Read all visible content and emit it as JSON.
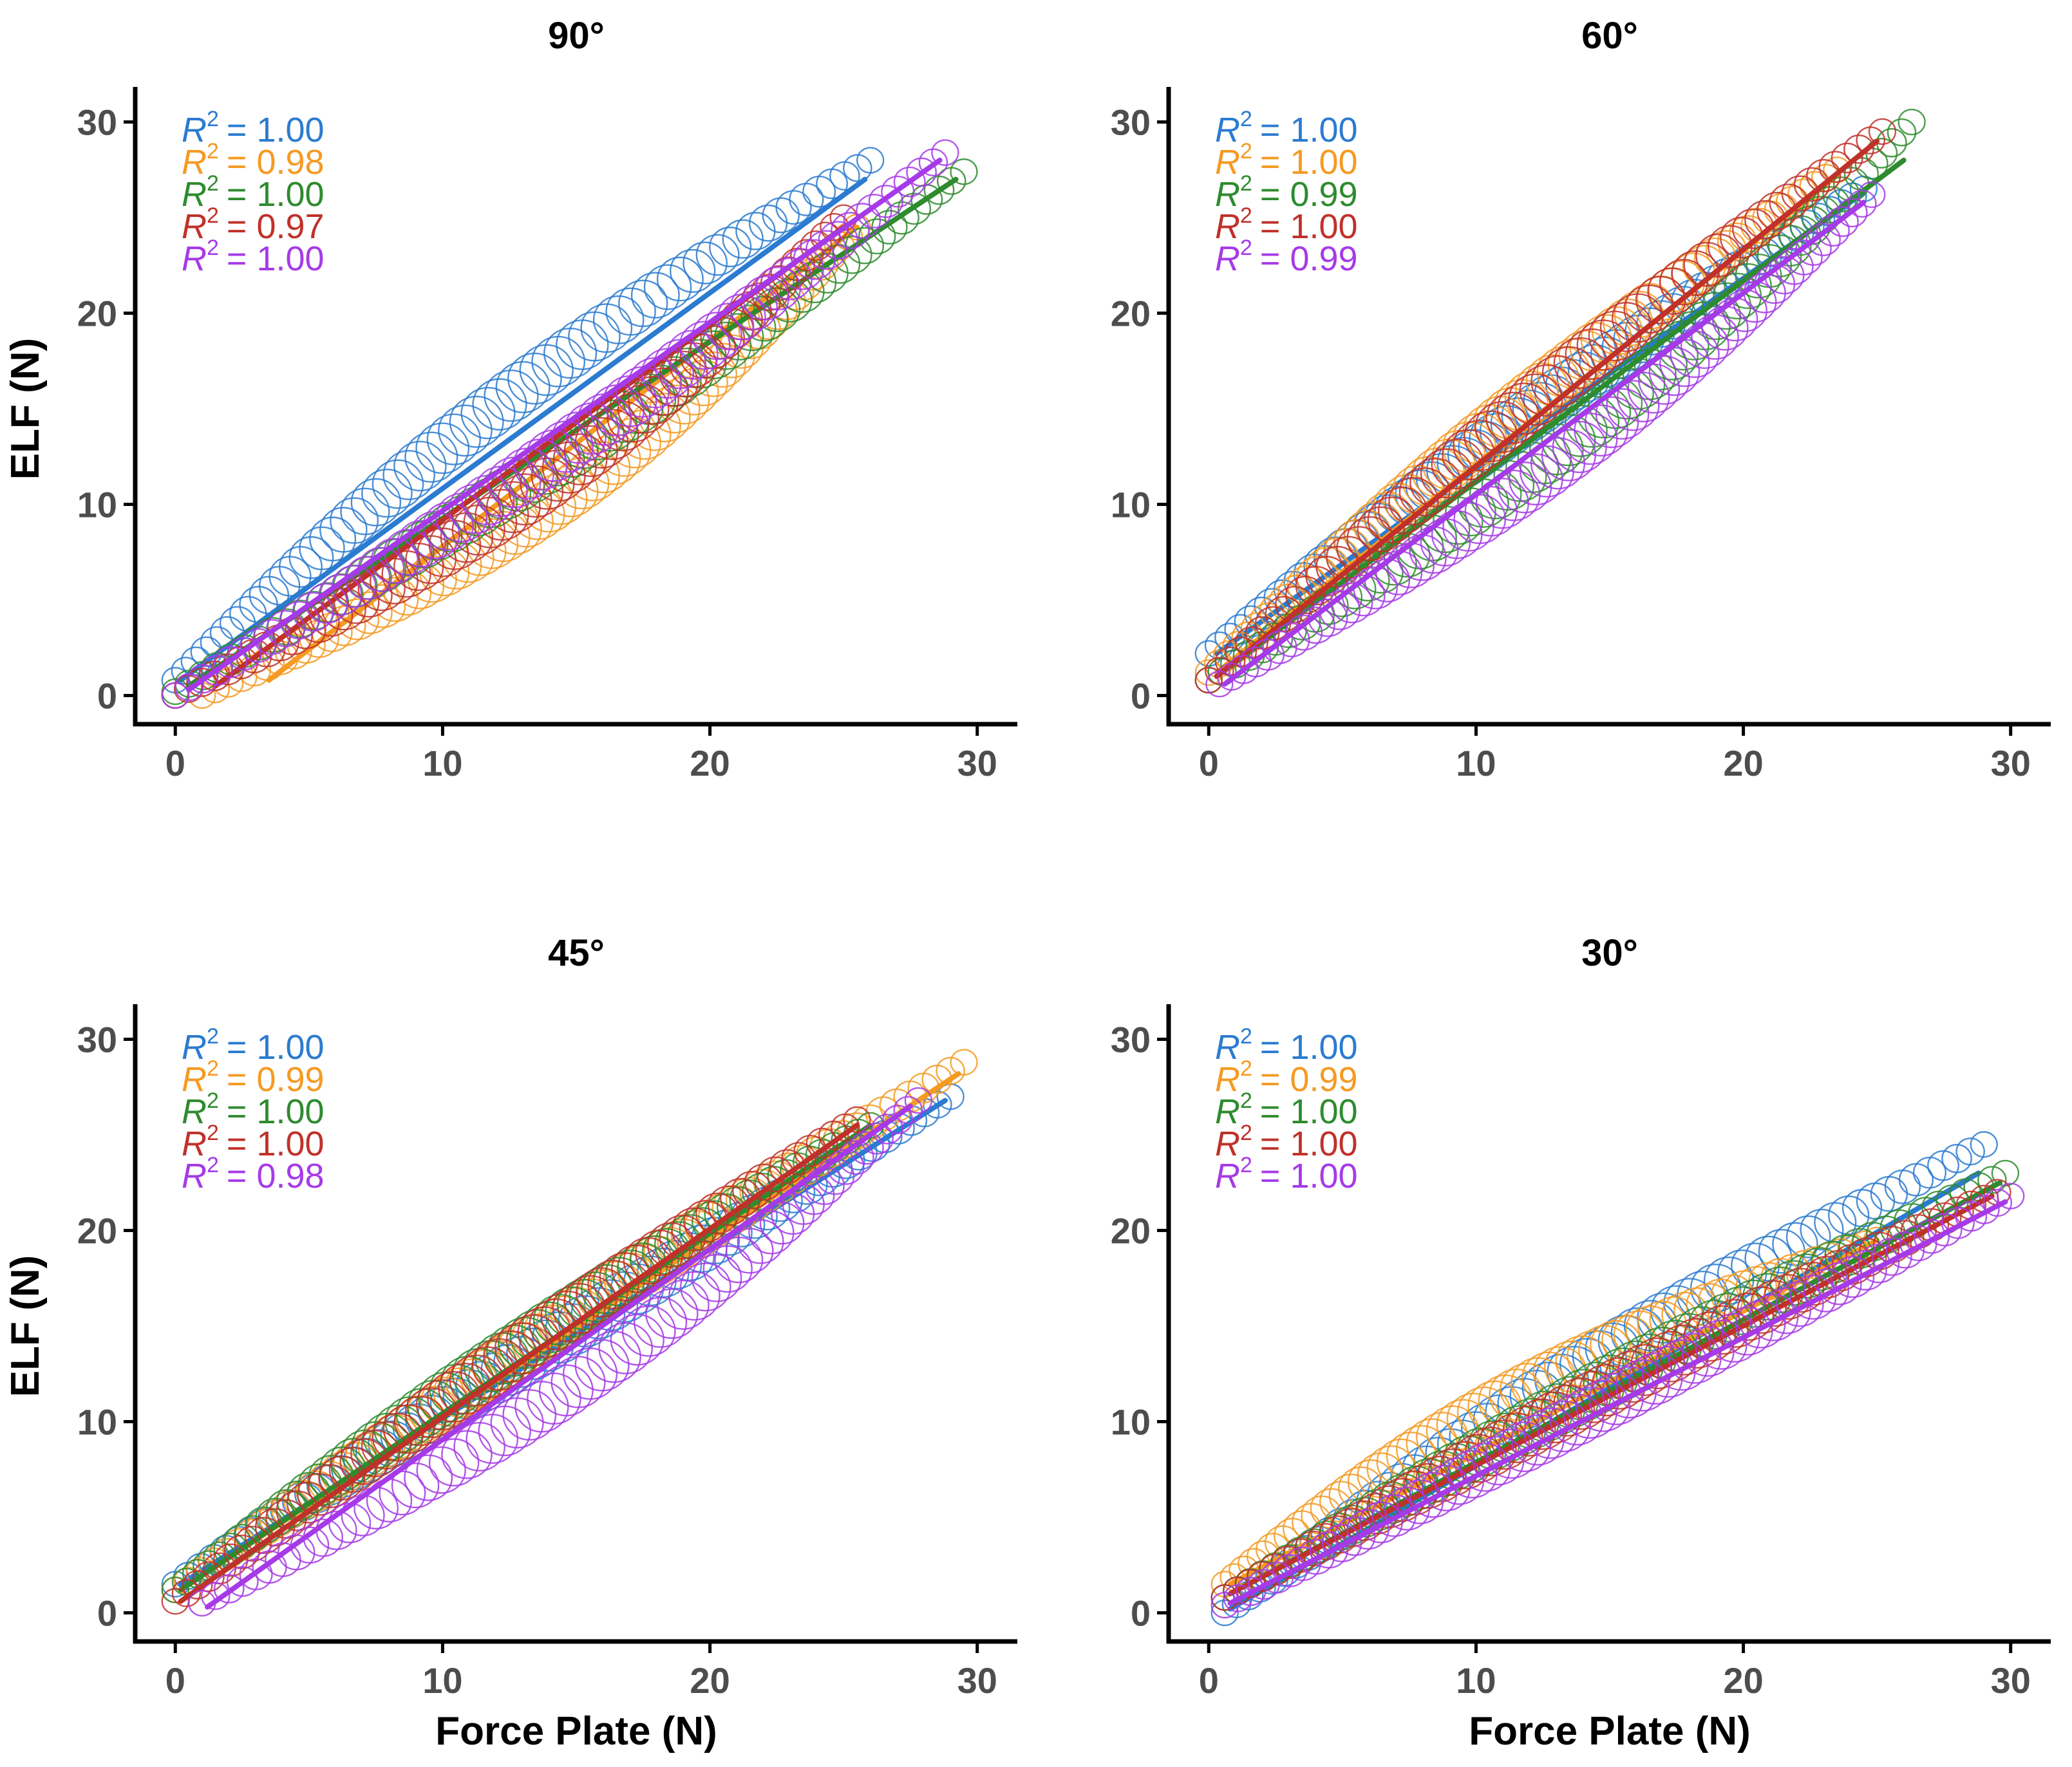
{
  "chart_data": [
    {
      "type": "scatter",
      "title": "90°",
      "xlabel": "",
      "ylabel": "ELF (N)",
      "xlim": [
        -1.5,
        31.5
      ],
      "ylim": [
        -1.5,
        31.5
      ],
      "xticks": [
        "0",
        "10",
        "20",
        "30"
      ],
      "yticks": [
        "0",
        "10",
        "20",
        "30"
      ],
      "grid": false,
      "r2_prefix": "R",
      "r2_exponent": "2",
      "series": [
        {
          "name": "series-1",
          "color": "#2b7bd0",
          "r2": "= 1.00",
          "start": [
            0,
            0.8
          ],
          "end": [
            26,
            28
          ],
          "bulge": 1.2,
          "size": 3,
          "fit": [
            [
              0.2,
              0.8
            ],
            [
              25.8,
              27
            ]
          ]
        },
        {
          "name": "series-2",
          "color": "#f59a22",
          "r2": "= 0.98",
          "start": [
            1,
            0
          ],
          "end": [
            25.5,
            24.5
          ],
          "bulge": -2.2,
          "size": 3,
          "fit": [
            [
              3.5,
              0.8
            ],
            [
              25.5,
              24.5
            ]
          ]
        },
        {
          "name": "series-3",
          "color": "#2e8b2e",
          "r2": "= 1.00",
          "start": [
            0,
            0.2
          ],
          "end": [
            29.5,
            27.4
          ],
          "bulge": -0.8,
          "size": 3,
          "fit": [
            [
              0.5,
              0.5
            ],
            [
              29.2,
              27
            ]
          ]
        },
        {
          "name": "series-4",
          "color": "#c0312a",
          "r2": "= 0.97",
          "start": [
            0,
            0
          ],
          "end": [
            25,
            25
          ],
          "bulge": -2.0,
          "size": 3,
          "fit": [
            [
              1.5,
              0.5
            ],
            [
              25,
              24.5
            ]
          ]
        },
        {
          "name": "series-5",
          "color": "#a63ae8",
          "r2": "= 1.00",
          "start": [
            0,
            0
          ],
          "end": [
            28.8,
            28.4
          ],
          "bulge": -1.0,
          "size": 3,
          "fit": [
            [
              0.5,
              0.3
            ],
            [
              28.6,
              28
            ]
          ]
        }
      ]
    },
    {
      "type": "scatter",
      "title": "60°",
      "xlabel": "",
      "ylabel": "",
      "xlim": [
        -1.5,
        31.5
      ],
      "ylim": [
        -1.5,
        31.5
      ],
      "xticks": [
        "0",
        "10",
        "20",
        "30"
      ],
      "yticks": [
        "0",
        "10",
        "20",
        "30"
      ],
      "grid": false,
      "r2_prefix": "R",
      "r2_exponent": "2",
      "series": [
        {
          "name": "series-1",
          "color": "#2b7bd0",
          "r2": "= 1.00",
          "start": [
            0,
            2.2
          ],
          "end": [
            24.5,
            26.5
          ],
          "bulge": 0.4,
          "size": 3,
          "fit": [
            [
              0.3,
              2.2
            ],
            [
              24.5,
              26.3
            ]
          ]
        },
        {
          "name": "series-2",
          "color": "#f59a22",
          "r2": "= 1.00",
          "start": [
            0,
            1.2
          ],
          "end": [
            23.5,
            27.5
          ],
          "bulge": 0.6,
          "size": 3,
          "fit": [
            [
              0.3,
              1.2
            ],
            [
              23.5,
              27.2
            ]
          ]
        },
        {
          "name": "series-3",
          "color": "#2e8b2e",
          "r2": "= 0.99",
          "start": [
            0,
            0.8
          ],
          "end": [
            26.3,
            30
          ],
          "bulge": -1.6,
          "size": 3,
          "fit": [
            [
              0.3,
              1.0
            ],
            [
              26,
              28
            ]
          ]
        },
        {
          "name": "series-4",
          "color": "#c0312a",
          "r2": "= 1.00",
          "start": [
            0,
            0.8
          ],
          "end": [
            25.2,
            29.5
          ],
          "bulge": 0.5,
          "size": 3,
          "fit": [
            [
              0.3,
              1.0
            ],
            [
              25,
              29
            ]
          ]
        },
        {
          "name": "series-5",
          "color": "#a63ae8",
          "r2": "= 0.99",
          "start": [
            0.4,
            0.6
          ],
          "end": [
            24.8,
            26.2
          ],
          "bulge": -1.2,
          "size": 3,
          "fit": [
            [
              0.6,
              0.6
            ],
            [
              24.5,
              25.8
            ]
          ]
        }
      ]
    },
    {
      "type": "scatter",
      "title": "45°",
      "xlabel": "Force Plate (N)",
      "ylabel": "ELF (N)",
      "xlim": [
        -1.5,
        31.5
      ],
      "ylim": [
        -1.5,
        31.5
      ],
      "xticks": [
        "0",
        "10",
        "20",
        "30"
      ],
      "yticks": [
        "0",
        "10",
        "20",
        "30"
      ],
      "grid": false,
      "r2_prefix": "R",
      "r2_exponent": "2",
      "series": [
        {
          "name": "series-1",
          "color": "#2b7bd0",
          "r2": "= 1.00",
          "start": [
            0,
            1.5
          ],
          "end": [
            29,
            27
          ],
          "bulge": 0.2,
          "size": 3,
          "fit": [
            [
              0.2,
              1.5
            ],
            [
              28.8,
              26.8
            ]
          ]
        },
        {
          "name": "series-2",
          "color": "#f59a22",
          "r2": "= 0.99",
          "start": [
            0,
            1.2
          ],
          "end": [
            29.5,
            28.8
          ],
          "bulge": 0.3,
          "size": 3,
          "fit": [
            [
              0.2,
              1.2
            ],
            [
              29.3,
              28.2
            ]
          ]
        },
        {
          "name": "series-3",
          "color": "#2e8b2e",
          "r2": "= 1.00",
          "start": [
            0,
            1.2
          ],
          "end": [
            26,
            25.5
          ],
          "bulge": 0.5,
          "size": 3,
          "fit": [
            [
              0.2,
              1.2
            ],
            [
              26,
              25.5
            ]
          ]
        },
        {
          "name": "series-4",
          "color": "#c0312a",
          "r2": "= 1.00",
          "start": [
            0,
            0.6
          ],
          "end": [
            25.5,
            25.8
          ],
          "bulge": 0.3,
          "size": 3,
          "fit": [
            [
              0.2,
              0.6
            ],
            [
              25.5,
              25.5
            ]
          ]
        },
        {
          "name": "series-5",
          "color": "#a63ae8",
          "r2": "= 0.98",
          "start": [
            1,
            0.5
          ],
          "end": [
            27.8,
            26.8
          ],
          "bulge": -1.6,
          "size": 3,
          "fit": [
            [
              1.2,
              0.3
            ],
            [
              27.5,
              26.5
            ]
          ]
        }
      ]
    },
    {
      "type": "scatter",
      "title": "30°",
      "xlabel": "Force Plate (N)",
      "ylabel": "",
      "xlim": [
        -1.5,
        31.5
      ],
      "ylim": [
        -1.5,
        31.5
      ],
      "xticks": [
        "0",
        "10",
        "20",
        "30"
      ],
      "yticks": [
        "0",
        "10",
        "20",
        "30"
      ],
      "grid": false,
      "r2_prefix": "R",
      "r2_exponent": "2",
      "series": [
        {
          "name": "series-1",
          "color": "#2b7bd0",
          "r2": "= 1.00",
          "start": [
            0.6,
            0
          ],
          "end": [
            29,
            24.5
          ],
          "bulge": 1.0,
          "size": 3,
          "fit": [
            [
              0.8,
              0.2
            ],
            [
              28.8,
              23
            ]
          ]
        },
        {
          "name": "series-2",
          "color": "#f59a22",
          "r2": "= 0.99",
          "start": [
            0.6,
            1.5
          ],
          "end": [
            25,
            19.5
          ],
          "bulge": 1.5,
          "size": 3,
          "fit": [
            [
              0.8,
              1.5
            ],
            [
              25,
              19.5
            ]
          ]
        },
        {
          "name": "series-3",
          "color": "#2e8b2e",
          "r2": "= 1.00",
          "start": [
            0.6,
            0.8
          ],
          "end": [
            29.8,
            23
          ],
          "bulge": 0.3,
          "size": 3,
          "fit": [
            [
              0.8,
              1.0
            ],
            [
              29.6,
              22.5
            ]
          ]
        },
        {
          "name": "series-4",
          "color": "#c0312a",
          "r2": "= 1.00",
          "start": [
            0.6,
            0.8
          ],
          "end": [
            29.5,
            22
          ],
          "bulge": 0.3,
          "size": 3,
          "fit": [
            [
              0.8,
              1.0
            ],
            [
              29.3,
              21.8
            ]
          ]
        },
        {
          "name": "series-5",
          "color": "#a63ae8",
          "r2": "= 1.00",
          "start": [
            0.6,
            0.4
          ],
          "end": [
            30,
            21.8
          ],
          "bulge": 0.1,
          "size": 3,
          "fit": [
            [
              0.8,
              0.5
            ],
            [
              29.8,
              21.5
            ]
          ]
        }
      ]
    }
  ]
}
